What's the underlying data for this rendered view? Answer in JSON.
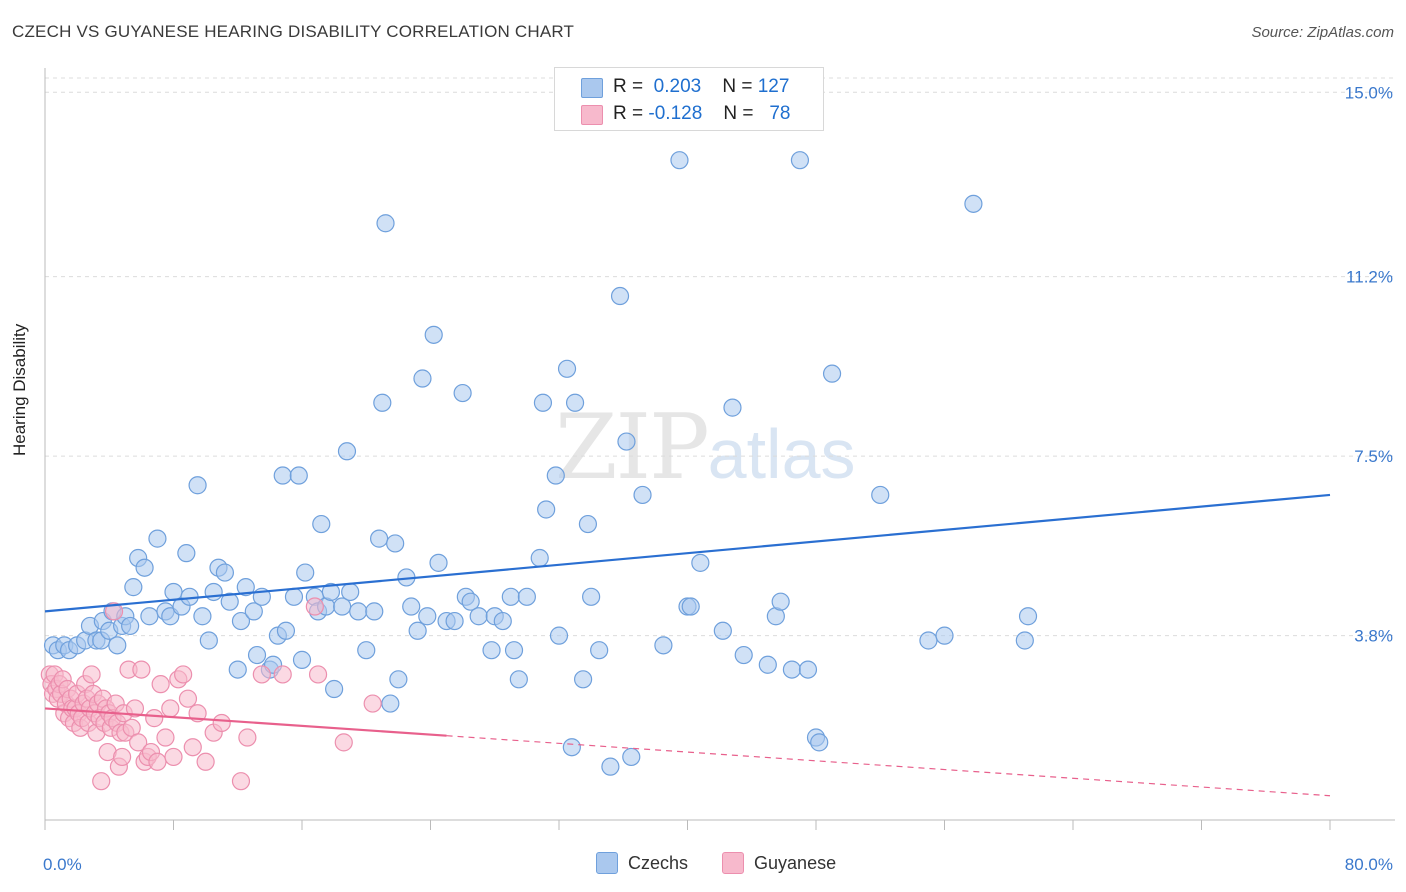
{
  "title": "CZECH VS GUYANESE HEARING DISABILITY CORRELATION CHART",
  "source": "Source: ZipAtlas.com",
  "watermark": {
    "zip": "ZIP",
    "atlas": "atlas"
  },
  "legend": {
    "rows": [
      {
        "r_label": "R =",
        "r_value": "0.203",
        "n_label": "N =",
        "n_value": "127",
        "color": "#aac8ee"
      },
      {
        "r_label": "R =",
        "r_value": "-0.128",
        "n_label": "N =",
        "n_value": "78",
        "color": "#f7b9cc"
      }
    ]
  },
  "bottom_legend": [
    {
      "label": "Czechs",
      "color": "#aac8ee"
    },
    {
      "label": "Guyanese",
      "color": "#f7b9cc"
    }
  ],
  "chart_data": {
    "type": "scatter",
    "title": "CZECH VS GUYANESE HEARING DISABILITY CORRELATION CHART",
    "xlabel": "",
    "ylabel": "Hearing Disability",
    "xlim": [
      0,
      80
    ],
    "ylim": [
      0,
      15.5
    ],
    "x_tick_labels": [
      "0.0%",
      "80.0%"
    ],
    "y_ticks": [
      3.8,
      7.5,
      11.2,
      15.0
    ],
    "y_tick_labels": [
      "3.8%",
      "7.5%",
      "11.2%",
      "15.0%"
    ],
    "grid": true,
    "series": [
      {
        "name": "Czechs",
        "color": "#6fa0dc",
        "fill": "#aac8ee",
        "trend": {
          "x": [
            0,
            80
          ],
          "y": [
            4.3,
            6.7
          ],
          "color": "#2a6fd1",
          "dashed_from": null
        },
        "points": [
          [
            0.5,
            3.6
          ],
          [
            0.8,
            3.5
          ],
          [
            1.2,
            3.6
          ],
          [
            1.5,
            3.5
          ],
          [
            2.0,
            3.6
          ],
          [
            2.5,
            3.7
          ],
          [
            2.8,
            4.0
          ],
          [
            3.2,
            3.7
          ],
          [
            3.5,
            3.7
          ],
          [
            3.6,
            4.1
          ],
          [
            4.0,
            3.9
          ],
          [
            4.2,
            4.3
          ],
          [
            4.5,
            3.6
          ],
          [
            4.8,
            4.0
          ],
          [
            5.0,
            4.2
          ],
          [
            5.3,
            4.0
          ],
          [
            5.5,
            4.8
          ],
          [
            5.8,
            5.4
          ],
          [
            6.2,
            5.2
          ],
          [
            6.5,
            4.2
          ],
          [
            7.0,
            5.8
          ],
          [
            7.5,
            4.3
          ],
          [
            7.8,
            4.2
          ],
          [
            8.0,
            4.7
          ],
          [
            8.5,
            4.4
          ],
          [
            8.8,
            5.5
          ],
          [
            9.0,
            4.6
          ],
          [
            9.5,
            6.9
          ],
          [
            9.8,
            4.2
          ],
          [
            10.2,
            3.7
          ],
          [
            10.5,
            4.7
          ],
          [
            10.8,
            5.2
          ],
          [
            11.2,
            5.1
          ],
          [
            11.5,
            4.5
          ],
          [
            12.0,
            3.1
          ],
          [
            12.2,
            4.1
          ],
          [
            12.5,
            4.8
          ],
          [
            13.0,
            4.3
          ],
          [
            13.2,
            3.4
          ],
          [
            13.5,
            4.6
          ],
          [
            14.0,
            3.1
          ],
          [
            14.2,
            3.2
          ],
          [
            14.5,
            3.8
          ],
          [
            14.8,
            7.1
          ],
          [
            15.0,
            3.9
          ],
          [
            15.5,
            4.6
          ],
          [
            15.8,
            7.1
          ],
          [
            16.0,
            3.3
          ],
          [
            16.2,
            5.1
          ],
          [
            16.8,
            4.6
          ],
          [
            17.0,
            4.3
          ],
          [
            17.2,
            6.1
          ],
          [
            17.5,
            4.4
          ],
          [
            17.8,
            4.7
          ],
          [
            18.0,
            2.7
          ],
          [
            18.5,
            4.4
          ],
          [
            18.8,
            7.6
          ],
          [
            19.0,
            4.7
          ],
          [
            19.5,
            4.3
          ],
          [
            20.0,
            3.5
          ],
          [
            20.5,
            4.3
          ],
          [
            20.8,
            5.8
          ],
          [
            21.0,
            8.6
          ],
          [
            21.2,
            12.3
          ],
          [
            21.5,
            2.4
          ],
          [
            21.8,
            5.7
          ],
          [
            22.0,
            2.9
          ],
          [
            22.5,
            5.0
          ],
          [
            22.8,
            4.4
          ],
          [
            23.2,
            3.9
          ],
          [
            23.5,
            9.1
          ],
          [
            23.8,
            4.2
          ],
          [
            24.2,
            10.0
          ],
          [
            24.5,
            5.3
          ],
          [
            25.0,
            4.1
          ],
          [
            25.5,
            4.1
          ],
          [
            26.0,
            8.8
          ],
          [
            26.2,
            4.6
          ],
          [
            26.5,
            4.5
          ],
          [
            27.0,
            4.2
          ],
          [
            27.8,
            3.5
          ],
          [
            28.0,
            4.2
          ],
          [
            28.5,
            4.1
          ],
          [
            29.0,
            4.6
          ],
          [
            29.2,
            3.5
          ],
          [
            29.5,
            2.9
          ],
          [
            30.0,
            4.6
          ],
          [
            30.8,
            5.4
          ],
          [
            31.0,
            8.6
          ],
          [
            31.2,
            6.4
          ],
          [
            31.8,
            7.1
          ],
          [
            32.0,
            3.8
          ],
          [
            32.5,
            9.3
          ],
          [
            32.8,
            1.5
          ],
          [
            33.0,
            8.6
          ],
          [
            33.5,
            2.9
          ],
          [
            33.8,
            6.1
          ],
          [
            34.0,
            4.6
          ],
          [
            34.5,
            3.5
          ],
          [
            35.2,
            1.1
          ],
          [
            35.8,
            10.8
          ],
          [
            36.2,
            7.8
          ],
          [
            36.5,
            1.3
          ],
          [
            37.2,
            6.7
          ],
          [
            38.5,
            3.6
          ],
          [
            39.5,
            13.6
          ],
          [
            40.0,
            4.4
          ],
          [
            40.2,
            4.4
          ],
          [
            40.8,
            5.3
          ],
          [
            42.2,
            3.9
          ],
          [
            42.8,
            8.5
          ],
          [
            43.5,
            3.4
          ],
          [
            45.0,
            3.2
          ],
          [
            45.5,
            4.2
          ],
          [
            45.8,
            4.5
          ],
          [
            46.5,
            3.1
          ],
          [
            47.0,
            13.6
          ],
          [
            47.5,
            3.1
          ],
          [
            48.0,
            1.7
          ],
          [
            48.2,
            1.6
          ],
          [
            49.0,
            9.2
          ],
          [
            52.0,
            6.7
          ],
          [
            55.0,
            3.7
          ],
          [
            56.0,
            3.8
          ],
          [
            57.8,
            12.7
          ],
          [
            61.0,
            3.7
          ],
          [
            61.2,
            4.2
          ]
        ]
      },
      {
        "name": "Guyanese",
        "color": "#ec8fae",
        "fill": "#f7b9cc",
        "trend": {
          "x": [
            0,
            80
          ],
          "y": [
            2.3,
            0.5
          ],
          "color": "#e8608c",
          "solid_until": 25
        },
        "points": [
          [
            0.3,
            3.0
          ],
          [
            0.4,
            2.8
          ],
          [
            0.5,
            2.6
          ],
          [
            0.6,
            3.0
          ],
          [
            0.7,
            2.7
          ],
          [
            0.8,
            2.5
          ],
          [
            0.9,
            2.8
          ],
          [
            1.0,
            2.6
          ],
          [
            1.1,
            2.9
          ],
          [
            1.2,
            2.2
          ],
          [
            1.3,
            2.4
          ],
          [
            1.4,
            2.7
          ],
          [
            1.5,
            2.1
          ],
          [
            1.6,
            2.5
          ],
          [
            1.7,
            2.3
          ],
          [
            1.8,
            2.0
          ],
          [
            1.9,
            2.3
          ],
          [
            2.0,
            2.6
          ],
          [
            2.1,
            2.2
          ],
          [
            2.2,
            1.9
          ],
          [
            2.3,
            2.1
          ],
          [
            2.4,
            2.4
          ],
          [
            2.5,
            2.8
          ],
          [
            2.6,
            2.5
          ],
          [
            2.7,
            2.0
          ],
          [
            2.8,
            2.3
          ],
          [
            2.9,
            3.0
          ],
          [
            3.0,
            2.6
          ],
          [
            3.1,
            2.2
          ],
          [
            3.2,
            1.8
          ],
          [
            3.3,
            2.4
          ],
          [
            3.4,
            2.1
          ],
          [
            3.5,
            0.8
          ],
          [
            3.6,
            2.5
          ],
          [
            3.7,
            2.0
          ],
          [
            3.8,
            2.3
          ],
          [
            3.9,
            1.4
          ],
          [
            4.0,
            2.2
          ],
          [
            4.1,
            1.9
          ],
          [
            4.2,
            2.1
          ],
          [
            4.3,
            4.3
          ],
          [
            4.4,
            2.4
          ],
          [
            4.5,
            2.0
          ],
          [
            4.6,
            1.1
          ],
          [
            4.7,
            1.8
          ],
          [
            4.8,
            1.3
          ],
          [
            4.9,
            2.2
          ],
          [
            5.0,
            1.8
          ],
          [
            5.2,
            3.1
          ],
          [
            5.4,
            1.9
          ],
          [
            5.6,
            2.3
          ],
          [
            5.8,
            1.6
          ],
          [
            6.0,
            3.1
          ],
          [
            6.2,
            1.2
          ],
          [
            6.4,
            1.3
          ],
          [
            6.6,
            1.4
          ],
          [
            6.8,
            2.1
          ],
          [
            7.0,
            1.2
          ],
          [
            7.2,
            2.8
          ],
          [
            7.5,
            1.7
          ],
          [
            7.8,
            2.3
          ],
          [
            8.0,
            1.3
          ],
          [
            8.3,
            2.9
          ],
          [
            8.6,
            3.0
          ],
          [
            8.9,
            2.5
          ],
          [
            9.2,
            1.5
          ],
          [
            9.5,
            2.2
          ],
          [
            10.0,
            1.2
          ],
          [
            10.5,
            1.8
          ],
          [
            11.0,
            2.0
          ],
          [
            12.2,
            0.8
          ],
          [
            12.6,
            1.7
          ],
          [
            13.5,
            3.0
          ],
          [
            14.8,
            3.0
          ],
          [
            16.8,
            4.4
          ],
          [
            17.0,
            3.0
          ],
          [
            18.6,
            1.6
          ],
          [
            20.4,
            2.4
          ]
        ]
      }
    ]
  }
}
